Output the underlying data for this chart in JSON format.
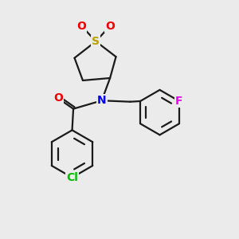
{
  "bg_color": "#ebebeb",
  "bond_color": "#1a1a1a",
  "bond_width": 1.6,
  "atom_colors": {
    "S": "#b8a000",
    "O": "#ee0000",
    "N": "#0000ee",
    "F": "#ee00ee",
    "Cl": "#00bb00",
    "C": "#1a1a1a"
  },
  "fig_w": 3.0,
  "fig_h": 3.0,
  "dpi": 100,
  "xlim": [
    0,
    10
  ],
  "ylim": [
    0,
    10
  ]
}
